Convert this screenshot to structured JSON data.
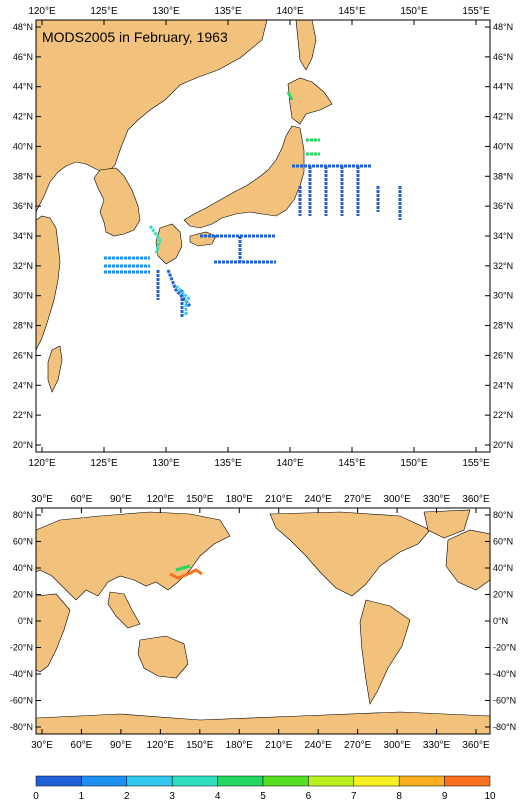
{
  "title": "MODS2005 in February, 1963",
  "top_map": {
    "lon_labels": [
      "120°E",
      "125°E",
      "130°E",
      "135°E",
      "140°E",
      "145°E",
      "150°E",
      "155°E"
    ],
    "lat_labels": [
      "48°N",
      "46°N",
      "44°N",
      "42°N",
      "40°N",
      "38°N",
      "36°N",
      "34°N",
      "32°N",
      "30°N",
      "28°N",
      "26°N",
      "24°N",
      "22°N",
      "20°N"
    ]
  },
  "bottom_map": {
    "lon_labels": [
      "30°E",
      "60°E",
      "90°E",
      "120°E",
      "150°E",
      "180°E",
      "210°E",
      "240°E",
      "270°E",
      "300°E",
      "330°E",
      "360°E"
    ],
    "lat_labels": [
      "80°N",
      "60°N",
      "40°N",
      "20°N",
      "0°N",
      "-20°N",
      "-40°N",
      "-60°N",
      "-80°N"
    ]
  },
  "colorbar": {
    "labels": [
      "0",
      "1",
      "2",
      "3",
      "4",
      "5",
      "6",
      "7",
      "8",
      "9",
      "10"
    ],
    "colors": [
      "#1f5fd8",
      "#1e90f0",
      "#33c8f0",
      "#2fe0c0",
      "#22d860",
      "#55e022",
      "#b8f020",
      "#f8f020",
      "#f8b020",
      "#f87020"
    ]
  },
  "colors": {
    "land": "#f2c27c",
    "ocean": "#ffffff"
  }
}
